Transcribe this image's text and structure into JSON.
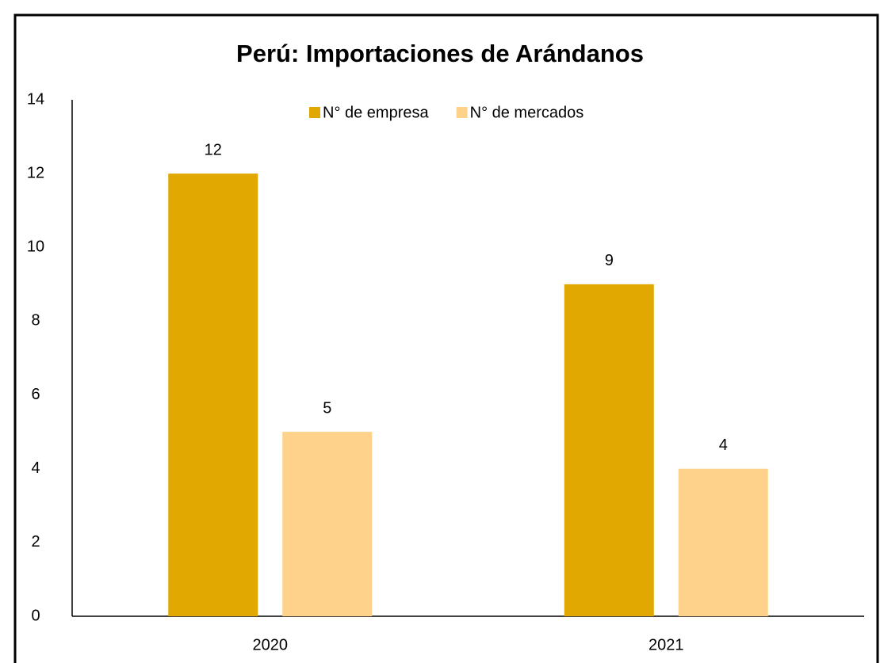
{
  "chart_data": {
    "type": "bar",
    "title": "Perú: Importaciones de Arándanos",
    "categories": [
      "2020",
      "2021"
    ],
    "series": [
      {
        "name": "N° de empresa",
        "color": "#e0a800",
        "values": [
          12,
          9
        ]
      },
      {
        "name": "N° de mercados",
        "color": "#fed28a",
        "values": [
          5,
          4
        ]
      }
    ],
    "ylim": [
      0,
      14
    ],
    "yticks": [
      0,
      2,
      4,
      6,
      8,
      10,
      12,
      14
    ],
    "grid": false,
    "legend": "top"
  }
}
